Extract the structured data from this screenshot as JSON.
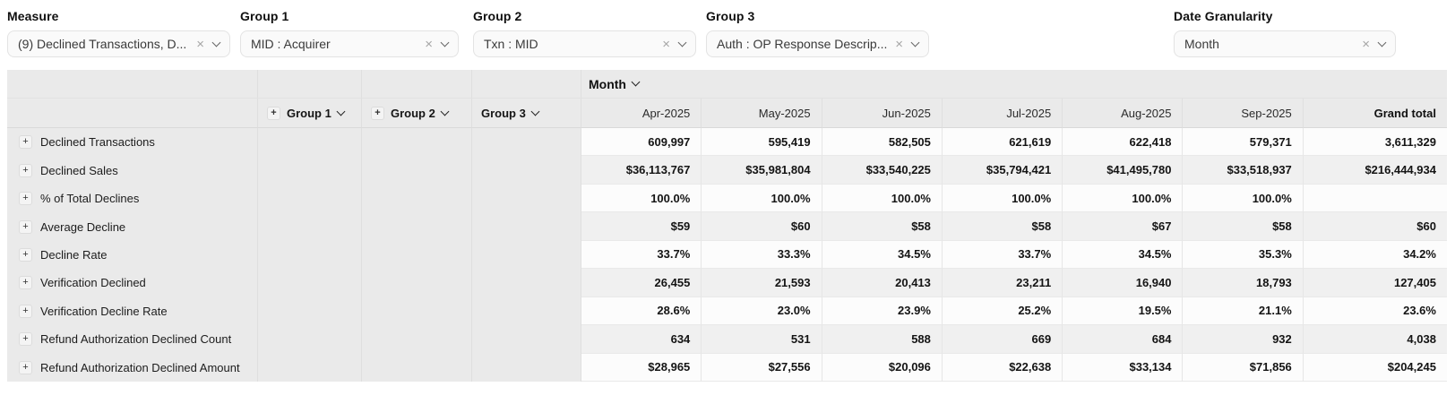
{
  "colors": {
    "header_gray": "#eaeaea",
    "zebra_gray": "#f0f0f0",
    "row_white": "#fcfcfc",
    "pill_bg": "#fafafa",
    "border": "#e0e0e0"
  },
  "icons": {
    "clear": "×",
    "expand": "+",
    "chevron_down": "⌄"
  },
  "filters": [
    {
      "label": "Measure",
      "value": "(9) Declined Transactions, D..."
    },
    {
      "label": "Group 1",
      "value": "MID : Acquirer"
    },
    {
      "label": "Group 2",
      "value": "Txn : MID"
    },
    {
      "label": "Group 3",
      "value": "Auth : OP Response Descrip..."
    },
    {
      "label": "Date Granularity",
      "value": "Month"
    }
  ],
  "table": {
    "month_header": "Month",
    "group_columns": [
      {
        "label": "Group 1",
        "expandable": true
      },
      {
        "label": "Group 2",
        "expandable": true
      },
      {
        "label": "Group 3",
        "expandable": false
      }
    ],
    "columns": [
      "Apr-2025",
      "May-2025",
      "Jun-2025",
      "Jul-2025",
      "Aug-2025",
      "Sep-2025",
      "Grand total"
    ],
    "rows": [
      {
        "label": "Declined Transactions",
        "values": [
          "609,997",
          "595,419",
          "582,505",
          "621,619",
          "622,418",
          "579,371",
          "3,611,329"
        ]
      },
      {
        "label": "Declined Sales",
        "values": [
          "$36,113,767",
          "$35,981,804",
          "$33,540,225",
          "$35,794,421",
          "$41,495,780",
          "$33,518,937",
          "$216,444,934"
        ]
      },
      {
        "label": "% of Total Declines",
        "values": [
          "100.0%",
          "100.0%",
          "100.0%",
          "100.0%",
          "100.0%",
          "100.0%",
          ""
        ]
      },
      {
        "label": "Average Decline",
        "values": [
          "$59",
          "$60",
          "$58",
          "$58",
          "$67",
          "$58",
          "$60"
        ]
      },
      {
        "label": "Decline Rate",
        "values": [
          "33.7%",
          "33.3%",
          "34.5%",
          "33.7%",
          "34.5%",
          "35.3%",
          "34.2%"
        ]
      },
      {
        "label": "Verification Declined",
        "values": [
          "26,455",
          "21,593",
          "20,413",
          "23,211",
          "16,940",
          "18,793",
          "127,405"
        ]
      },
      {
        "label": "Verification Decline Rate",
        "values": [
          "28.6%",
          "23.0%",
          "23.9%",
          "25.2%",
          "19.5%",
          "21.1%",
          "23.6%"
        ]
      },
      {
        "label": "Refund Authorization Declined Count",
        "values": [
          "634",
          "531",
          "588",
          "669",
          "684",
          "932",
          "4,038"
        ]
      },
      {
        "label": "Refund Authorization Declined Amount",
        "values": [
          "$28,965",
          "$27,556",
          "$20,096",
          "$22,638",
          "$33,134",
          "$71,856",
          "$204,245"
        ]
      }
    ]
  }
}
